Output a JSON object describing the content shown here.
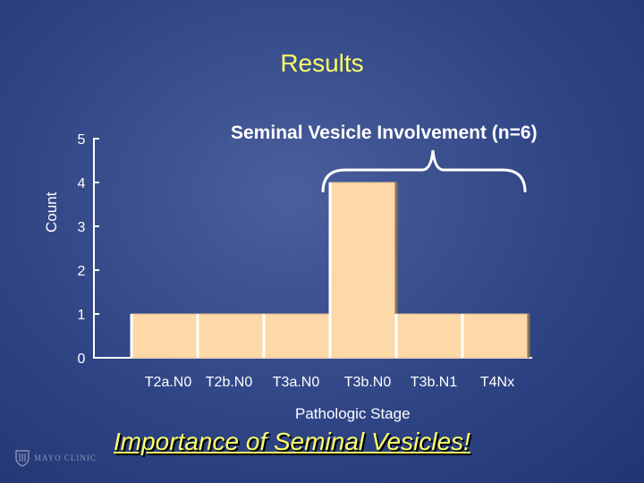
{
  "slide": {
    "title": "Results",
    "tagline": "Importance of Seminal Vesicles!",
    "logo_text": "MAYO CLINIC"
  },
  "colors": {
    "title": "#ffff66",
    "bar_fill": "#fdd9a8",
    "axis": "#ffffff",
    "background": "#2f4585"
  },
  "chart_data": {
    "type": "bar",
    "title": "Seminal Vesicle Involvement (n=6)",
    "xlabel": "Pathologic Stage",
    "ylabel": "Count",
    "categories": [
      "T2aN0",
      "T2bN0",
      "T3aN0",
      "T3bN0",
      "T3bN1",
      "T4Nx"
    ],
    "category_labels": [
      "T2a.N0",
      "T2b.N0",
      "T3a.N0",
      "T3b.N0",
      "T3b.N1",
      "T4Nx"
    ],
    "values": [
      1,
      1,
      1,
      4,
      1,
      1
    ],
    "ylim": [
      0,
      5
    ],
    "yticks": [
      "0",
      "1",
      "2",
      "3",
      "4",
      "5"
    ],
    "grid": false,
    "annotation": "brace grouping T3bN0, T3bN1, T4Nx"
  }
}
